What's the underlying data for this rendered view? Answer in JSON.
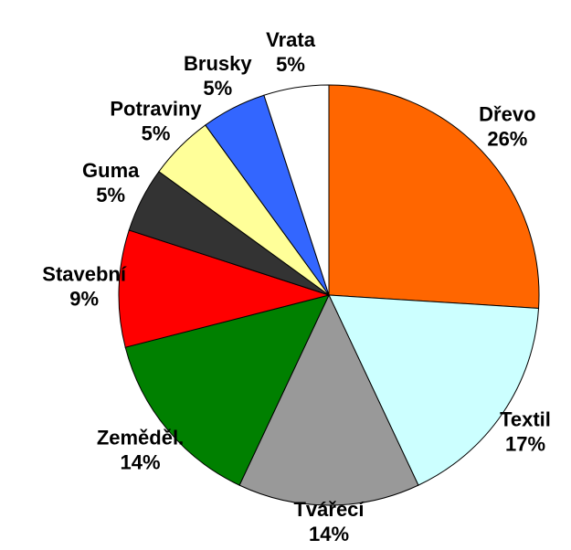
{
  "chart_data": {
    "type": "pie",
    "categories": [
      "Dřevo",
      "Textil",
      "Tvářecí",
      "Zeměděl.",
      "Stavební",
      "Guma",
      "Potraviny",
      "Brusky",
      "Vrata"
    ],
    "values": [
      26,
      17,
      14,
      14,
      9,
      5,
      5,
      5,
      5
    ],
    "value_labels": [
      "26%",
      "17%",
      "14%",
      "14%",
      "9%",
      "5%",
      "5%",
      "5%",
      "5%"
    ],
    "colors": [
      "#ff6600",
      "#ccffff",
      "#999999",
      "#008000",
      "#ff0000",
      "#333333",
      "#ffff99",
      "#3366ff",
      "#ffffff"
    ]
  }
}
